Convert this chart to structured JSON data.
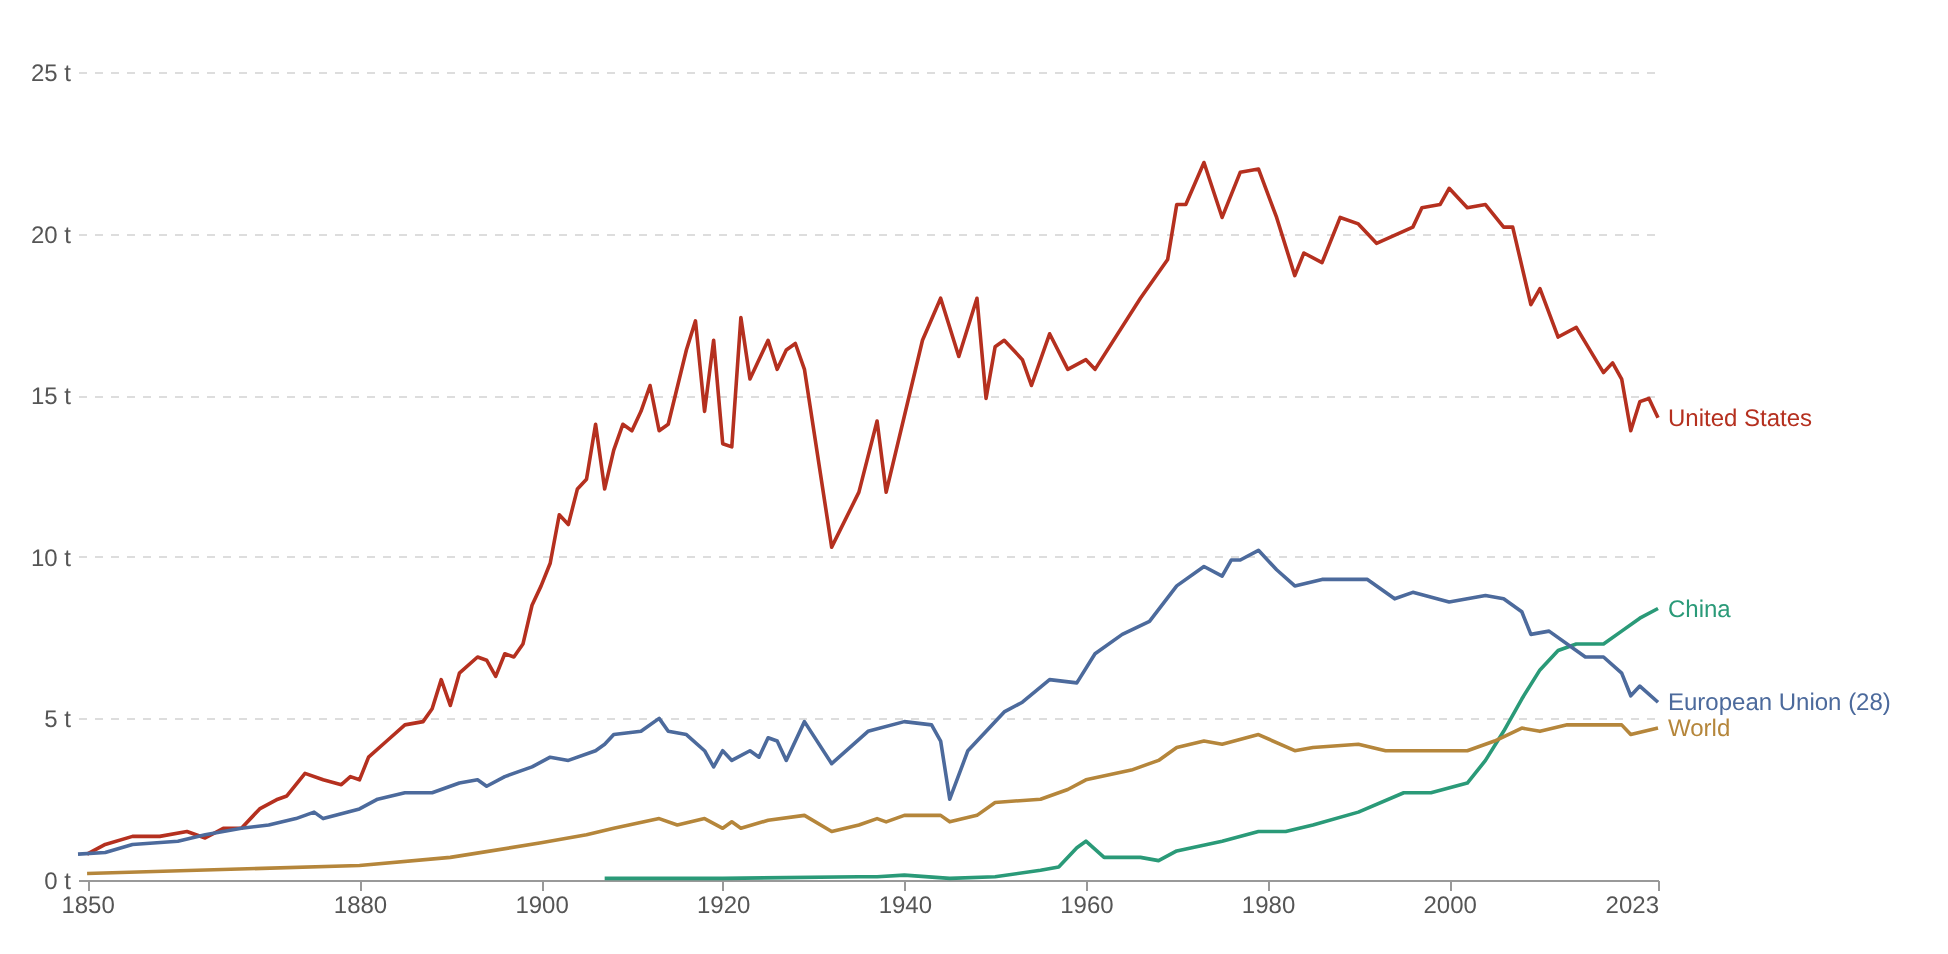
{
  "chart_data": {
    "type": "line",
    "xlim": [
      1849,
      2023
    ],
    "xticks": [
      1850,
      1880,
      1900,
      1920,
      1940,
      1960,
      1980,
      2000,
      2023
    ],
    "ylim": [
      0,
      25
    ],
    "yticks": [
      {
        "value": 0,
        "label": "0 t"
      },
      {
        "value": 5,
        "label": "5 t"
      },
      {
        "value": 10,
        "label": "10 t"
      },
      {
        "value": 15,
        "label": "15 t"
      },
      {
        "value": 20,
        "label": "20 t"
      },
      {
        "value": 25,
        "label": "25 t"
      }
    ],
    "grid": "y",
    "legend": false,
    "marker": "none",
    "line_style": "solid",
    "series": [
      {
        "name": "United States",
        "color": "#b5301f",
        "x": [
          1850,
          1852,
          1855,
          1858,
          1861,
          1863,
          1865,
          1867,
          1869,
          1871,
          1872,
          1874,
          1876,
          1878,
          1879,
          1880,
          1881,
          1883,
          1885,
          1887,
          1888,
          1889,
          1890,
          1891,
          1893,
          1894,
          1895,
          1896,
          1897,
          1898,
          1899,
          1900,
          1901,
          1902,
          1903,
          1904,
          1905,
          1906,
          1907,
          1908,
          1909,
          1910,
          1911,
          1912,
          1913,
          1914,
          1916,
          1917,
          1918,
          1919,
          1920,
          1921,
          1922,
          1923,
          1925,
          1926,
          1927,
          1928,
          1929,
          1932,
          1935,
          1937,
          1938,
          1942,
          1944,
          1946,
          1948,
          1949,
          1950,
          1951,
          1953,
          1954,
          1956,
          1958,
          1960,
          1961,
          1966,
          1969,
          1970,
          1971,
          1973,
          1975,
          1977,
          1979,
          1981,
          1983,
          1984,
          1986,
          1988,
          1990,
          1992,
          1996,
          1997,
          1999,
          2000,
          2002,
          2004,
          2006,
          2007,
          2009,
          2010,
          2012,
          2014,
          2017,
          2018,
          2019,
          2020,
          2021,
          2022,
          2023
        ],
        "values": [
          0.8,
          1.1,
          1.35,
          1.35,
          1.5,
          1.3,
          1.6,
          1.6,
          2.2,
          2.5,
          2.6,
          3.3,
          3.1,
          2.95,
          3.2,
          3.1,
          3.8,
          4.3,
          4.8,
          4.9,
          5.3,
          6.2,
          5.4,
          6.4,
          6.9,
          6.8,
          6.3,
          7.0,
          6.9,
          7.3,
          8.5,
          9.1,
          9.8,
          11.3,
          11.0,
          12.1,
          12.4,
          14.1,
          12.1,
          13.3,
          14.1,
          13.9,
          14.5,
          15.3,
          13.9,
          14.1,
          16.4,
          17.3,
          14.5,
          16.7,
          13.5,
          13.4,
          17.4,
          15.5,
          16.7,
          15.8,
          16.4,
          16.6,
          15.8,
          10.3,
          12.0,
          14.2,
          12.0,
          16.7,
          18.0,
          16.2,
          18.0,
          14.9,
          16.5,
          16.7,
          16.1,
          15.3,
          16.9,
          15.8,
          16.1,
          15.8,
          18.0,
          19.2,
          20.9,
          20.9,
          22.2,
          20.5,
          21.9,
          22.0,
          20.5,
          18.7,
          19.4,
          19.1,
          20.5,
          20.3,
          19.7,
          20.2,
          20.8,
          20.9,
          21.4,
          20.8,
          20.9,
          20.2,
          20.2,
          17.8,
          18.3,
          16.8,
          17.1,
          15.7,
          16.0,
          15.5,
          13.9,
          14.8,
          14.9,
          14.3
        ]
      },
      {
        "name": "China",
        "color": "#2a9a78",
        "x": [
          1907,
          1920,
          1935,
          1937,
          1940,
          1945,
          1950,
          1955,
          1957,
          1959,
          1960,
          1962,
          1966,
          1968,
          1970,
          1975,
          1979,
          1982,
          1985,
          1990,
          1995,
          1998,
          2002,
          2004,
          2006,
          2008,
          2010,
          2012,
          2014,
          2017,
          2019,
          2021,
          2023
        ],
        "values": [
          0.05,
          0.05,
          0.1,
          0.1,
          0.15,
          0.05,
          0.1,
          0.3,
          0.4,
          1.0,
          1.2,
          0.7,
          0.7,
          0.6,
          0.9,
          1.2,
          1.5,
          1.5,
          1.7,
          2.1,
          2.7,
          2.7,
          3.0,
          3.7,
          4.6,
          5.6,
          6.5,
          7.1,
          7.3,
          7.3,
          7.7,
          8.1,
          8.4
        ]
      },
      {
        "name": "European Union (28)",
        "color": "#4c6a9c",
        "x": [
          1849,
          1852,
          1855,
          1860,
          1863,
          1867,
          1870,
          1873,
          1875,
          1876,
          1880,
          1882,
          1885,
          1888,
          1891,
          1893,
          1894,
          1896,
          1899,
          1901,
          1903,
          1906,
          1907,
          1908,
          1911,
          1913,
          1914,
          1916,
          1918,
          1919,
          1920,
          1921,
          1923,
          1924,
          1925,
          1926,
          1927,
          1929,
          1932,
          1936,
          1940,
          1943,
          1944,
          1945,
          1947,
          1951,
          1953,
          1956,
          1959,
          1961,
          1964,
          1967,
          1970,
          1973,
          1975,
          1976,
          1977,
          1979,
          1981,
          1983,
          1986,
          1991,
          1994,
          1996,
          2000,
          2002,
          2004,
          2006,
          2008,
          2009,
          2011,
          2015,
          2017,
          2019,
          2020,
          2021,
          2023
        ],
        "values": [
          0.8,
          0.85,
          1.1,
          1.2,
          1.4,
          1.6,
          1.7,
          1.9,
          2.1,
          1.9,
          2.2,
          2.5,
          2.7,
          2.7,
          3.0,
          3.1,
          2.9,
          3.2,
          3.5,
          3.8,
          3.7,
          4.0,
          4.2,
          4.5,
          4.6,
          5.0,
          4.6,
          4.5,
          4.0,
          3.5,
          4.0,
          3.7,
          4.0,
          3.8,
          4.4,
          4.3,
          3.7,
          4.9,
          3.6,
          4.6,
          4.9,
          4.8,
          4.3,
          2.5,
          4.0,
          5.2,
          5.5,
          6.2,
          6.1,
          7.0,
          7.6,
          8.0,
          9.1,
          9.7,
          9.4,
          9.9,
          9.9,
          10.2,
          9.6,
          9.1,
          9.3,
          9.3,
          8.7,
          8.9,
          8.6,
          8.7,
          8.8,
          8.7,
          8.3,
          7.6,
          7.7,
          6.9,
          6.9,
          6.4,
          5.7,
          6.0,
          5.5
        ]
      },
      {
        "name": "World",
        "color": "#b5863b",
        "x": [
          1850,
          1880,
          1890,
          1900,
          1905,
          1908,
          1913,
          1915,
          1918,
          1920,
          1921,
          1922,
          1925,
          1929,
          1932,
          1935,
          1937,
          1938,
          1940,
          1944,
          1945,
          1948,
          1950,
          1955,
          1958,
          1960,
          1965,
          1968,
          1970,
          1973,
          1975,
          1979,
          1983,
          1985,
          1990,
          1993,
          1999,
          2002,
          2005,
          2008,
          2010,
          2013,
          2019,
          2020,
          2023
        ],
        "values": [
          0.2,
          0.45,
          0.7,
          1.15,
          1.4,
          1.6,
          1.9,
          1.7,
          1.9,
          1.6,
          1.8,
          1.6,
          1.85,
          2.0,
          1.5,
          1.7,
          1.9,
          1.8,
          2.0,
          2.0,
          1.8,
          2.0,
          2.4,
          2.5,
          2.8,
          3.1,
          3.4,
          3.7,
          4.1,
          4.3,
          4.2,
          4.5,
          4.0,
          4.1,
          4.2,
          4.0,
          4.0,
          4.0,
          4.3,
          4.7,
          4.6,
          4.8,
          4.8,
          4.5,
          4.7
        ]
      }
    ]
  }
}
